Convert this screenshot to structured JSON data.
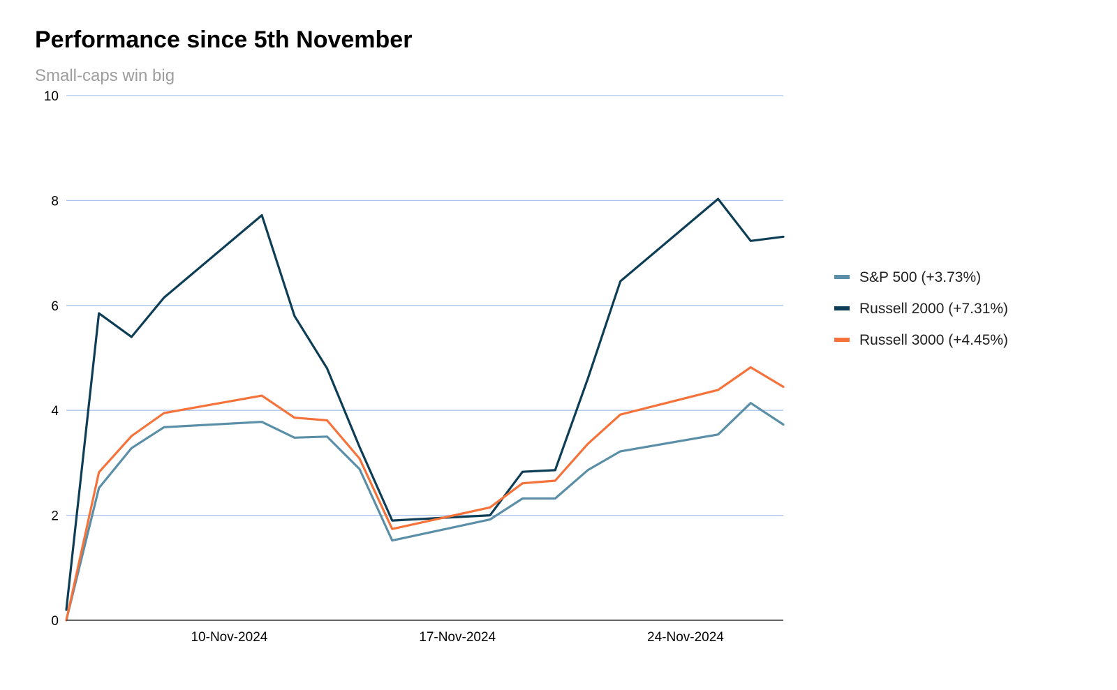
{
  "title": "Performance since 5th November",
  "subtitle": "Small-caps win big",
  "chart_data": {
    "type": "line",
    "title": "Performance since 5th November",
    "subtitle": "Small-caps win big",
    "xlabel": "",
    "ylabel": "",
    "x": [
      "2024-11-05",
      "2024-11-06",
      "2024-11-07",
      "2024-11-08",
      "2024-11-11",
      "2024-11-12",
      "2024-11-13",
      "2024-11-14",
      "2024-11-15",
      "2024-11-18",
      "2024-11-19",
      "2024-11-20",
      "2024-11-21",
      "2024-11-22",
      "2024-11-25",
      "2024-11-26",
      "2024-11-27"
    ],
    "x_ticks": [
      "10-Nov-2024",
      "17-Nov-2024",
      "24-Nov-2024"
    ],
    "x_tick_dates": [
      "2024-11-10",
      "2024-11-17",
      "2024-11-24"
    ],
    "xlim": [
      "2024-11-05",
      "2024-11-27"
    ],
    "ylim": [
      0,
      10
    ],
    "y_ticks": [
      0,
      2,
      4,
      6,
      8,
      10
    ],
    "grid": true,
    "legend_position": "right",
    "series": [
      {
        "name": "S&P 500 (+3.73%)",
        "color": "#5b8fa8",
        "values": [
          0,
          2.52,
          3.28,
          3.68,
          3.78,
          3.48,
          3.5,
          2.88,
          1.52,
          1.92,
          2.32,
          2.32,
          2.86,
          3.22,
          3.54,
          4.14,
          3.73
        ]
      },
      {
        "name": "Russell 2000 (+7.31%)",
        "color": "#0d3e56",
        "values": [
          0.2,
          5.85,
          5.4,
          6.15,
          7.72,
          5.8,
          4.8,
          3.3,
          1.9,
          2.0,
          2.83,
          2.86,
          4.6,
          6.46,
          8.03,
          7.23,
          7.31
        ]
      },
      {
        "name": "Russell 3000 (+4.45%)",
        "color": "#f5733a",
        "values": [
          0,
          2.82,
          3.51,
          3.95,
          4.28,
          3.86,
          3.81,
          3.08,
          1.74,
          2.15,
          2.61,
          2.66,
          3.36,
          3.92,
          4.39,
          4.82,
          4.45
        ]
      }
    ]
  },
  "colors": {
    "gridline": "#a9c4ee",
    "axis": "#333333"
  }
}
